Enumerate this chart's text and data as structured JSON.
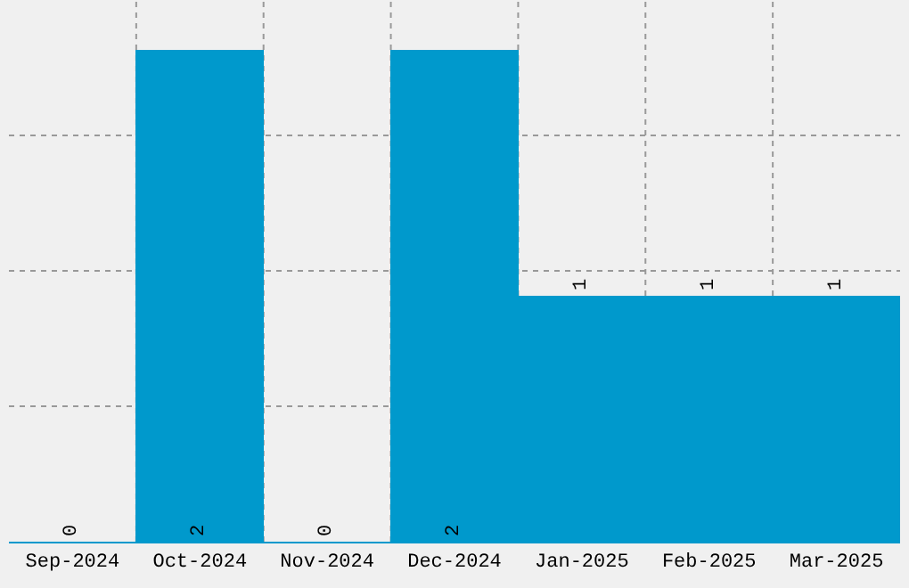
{
  "chart_data": {
    "type": "bar",
    "categories": [
      "Sep-2024",
      "Oct-2024",
      "Nov-2024",
      "Dec-2024",
      "Jan-2025",
      "Feb-2025",
      "Mar-2025"
    ],
    "values": [
      0,
      2,
      0,
      2,
      1,
      1,
      1
    ],
    "color": "#0099cc",
    "ylim": [
      0,
      2.2
    ],
    "yticks": [
      {
        "value": 0.55,
        "label": null
      },
      {
        "value": 1.1,
        "label": null
      },
      {
        "value": 1.65,
        "label": null
      },
      {
        "value": 2.2,
        "label": null
      }
    ],
    "tick_labels": "x",
    "grid": true,
    "data_labels": true
  }
}
